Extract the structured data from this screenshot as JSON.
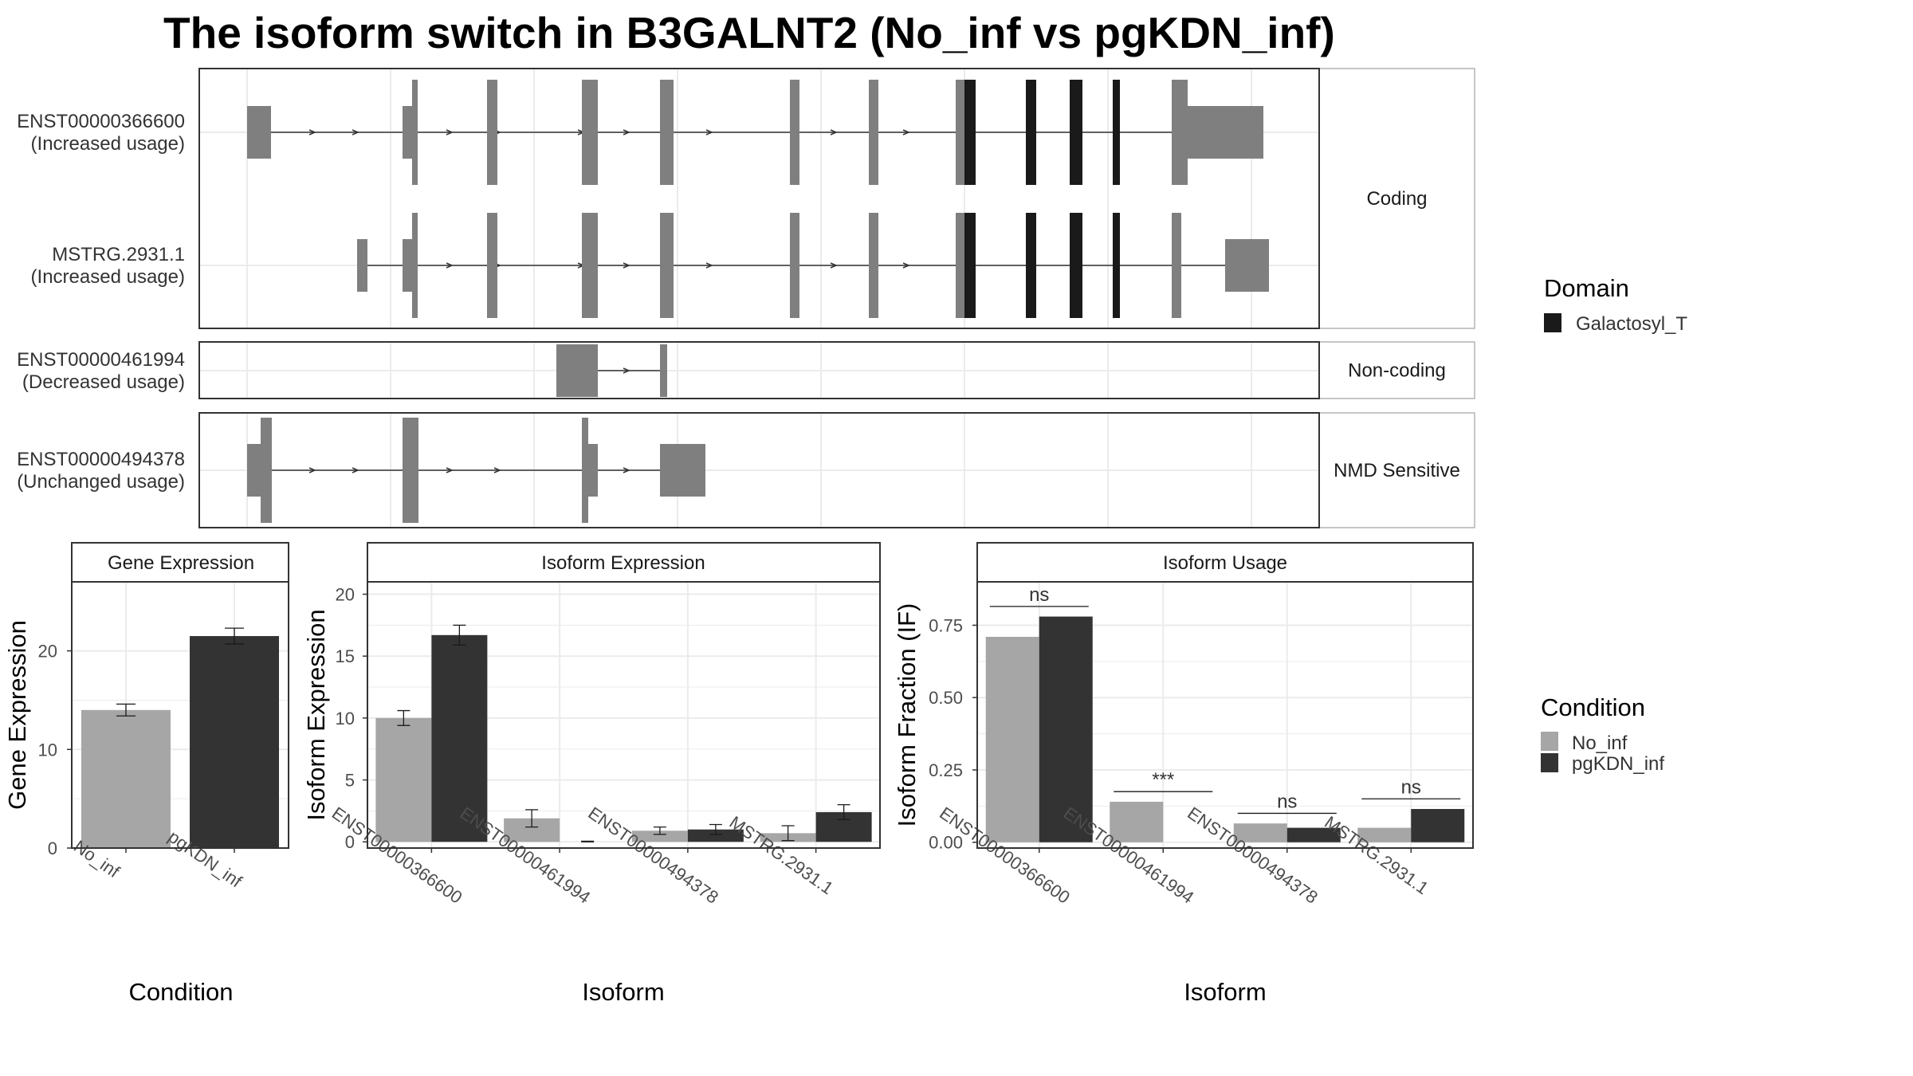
{
  "title": "The isoform switch in B3GALNT2 (No_inf vs pgKDN_inf)",
  "colors": {
    "exon": "#7f7f7f",
    "domain": "#1a1a1a",
    "no_inf": "#a6a6a6",
    "pgkdn_inf": "#333333",
    "grid": "#ebebeb",
    "frame": "#333333",
    "strip": "#ffffff"
  },
  "structure": {
    "facets": [
      {
        "label": "Coding",
        "isoforms": [
          {
            "name": "ENST00000366600",
            "usage": "(Increased usage)"
          },
          {
            "name": "MSTRG.2931.1",
            "usage": "(Increased usage)"
          }
        ]
      },
      {
        "label": "Non-coding",
        "isoforms": [
          {
            "name": "ENST00000461994",
            "usage": "(Decreased usage)"
          }
        ]
      },
      {
        "label": "NMD Sensitive",
        "isoforms": [
          {
            "name": "ENST00000494378",
            "usage": "(Unchanged usage)"
          }
        ]
      }
    ]
  },
  "legend_domain": {
    "title": "Domain",
    "items": [
      {
        "label": "Galactosyl_T",
        "color": "#1a1a1a"
      }
    ]
  },
  "legend_condition": {
    "title": "Condition",
    "items": [
      {
        "label": "No_inf",
        "color": "#a6a6a6"
      },
      {
        "label": "pgKDN_inf",
        "color": "#333333"
      }
    ]
  },
  "chart_data": [
    {
      "type": "bar",
      "title": "Gene Expression",
      "xlabel": "Condition",
      "ylabel": "Gene Expression",
      "categories": [
        "No_inf",
        "pgKDN_inf"
      ],
      "values": [
        14.0,
        21.5
      ],
      "errors": [
        0.6,
        0.8
      ],
      "yticks": [
        0,
        10,
        20
      ],
      "ylim": [
        0,
        27
      ]
    },
    {
      "type": "bar",
      "title": "Isoform Expression",
      "xlabel": "Isoform",
      "ylabel": "Isoform Expression",
      "categories": [
        "ENST00000366600",
        "ENST00000461994",
        "ENST00000494378",
        "MSTRG.2931.1"
      ],
      "series": [
        {
          "name": "No_inf",
          "values": [
            10.0,
            1.9,
            0.9,
            0.7
          ],
          "errors": [
            0.6,
            0.7,
            0.3,
            0.6
          ]
        },
        {
          "name": "pgKDN_inf",
          "values": [
            16.7,
            0.0,
            1.0,
            2.4
          ],
          "errors": [
            0.8,
            0.05,
            0.4,
            0.6
          ]
        }
      ],
      "yticks": [
        0,
        5,
        10,
        15,
        20
      ],
      "ylim": [
        -0.5,
        21
      ]
    },
    {
      "type": "bar",
      "title": "Isoform Usage",
      "xlabel": "Isoform",
      "ylabel": "Isoform Fraction (IF)",
      "categories": [
        "ENST00000366600",
        "ENST00000461994",
        "ENST00000494378",
        "MSTRG.2931.1"
      ],
      "series": [
        {
          "name": "No_inf",
          "values": [
            0.71,
            0.14,
            0.065,
            0.05
          ]
        },
        {
          "name": "pgKDN_inf",
          "values": [
            0.78,
            0.0,
            0.05,
            0.115
          ]
        }
      ],
      "significance": [
        "ns",
        "***",
        "ns",
        "ns"
      ],
      "yticks": [
        0.0,
        0.25,
        0.5,
        0.75
      ],
      "ytick_labels": [
        "0.00",
        "0.25",
        "0.50",
        "0.75"
      ],
      "ylim": [
        -0.02,
        0.9
      ]
    }
  ]
}
